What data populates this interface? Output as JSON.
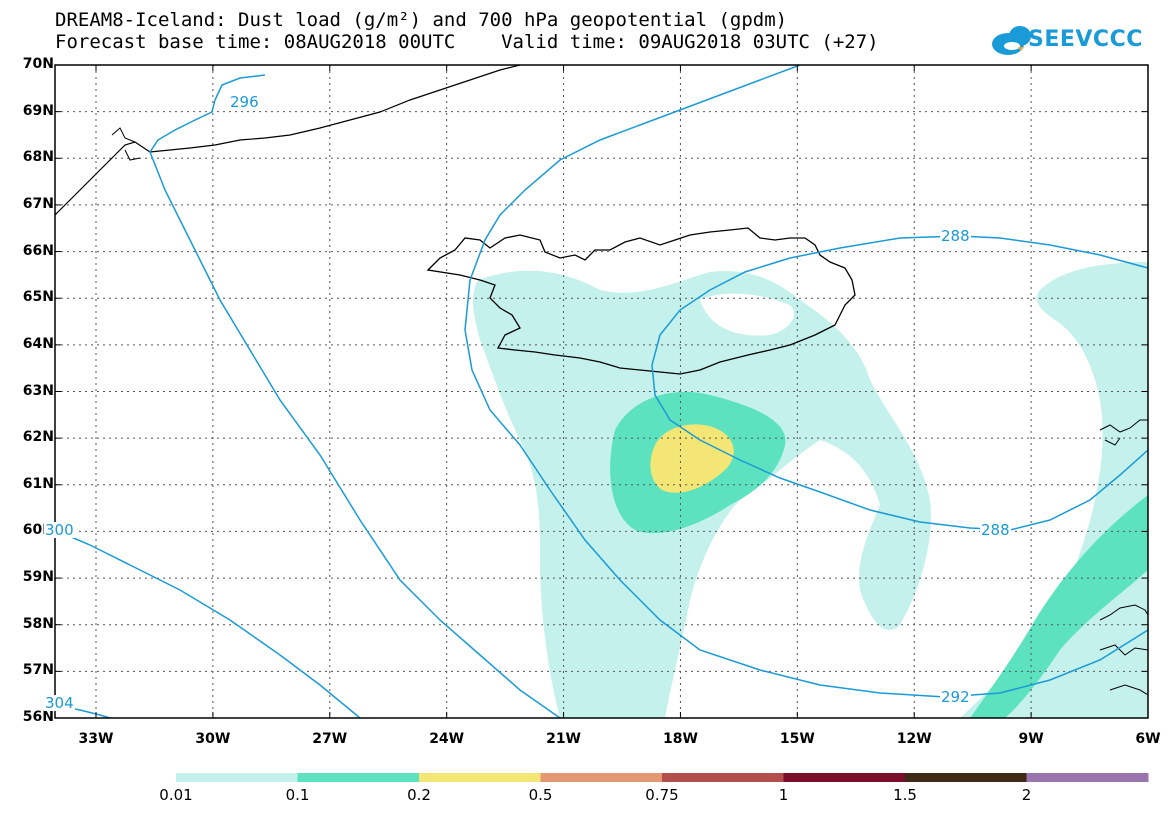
{
  "title": {
    "line1": "DREAM8-Iceland: Dust load (g/m²) and 700 hPa geopotential (gpdm)",
    "line2": "Forecast base time: 08AUG2018 00UTC    Valid time: 09AUG2018 03UTC (+27)"
  },
  "logo": {
    "text": "SEEVCCC",
    "icon": "cloud-icon",
    "color": "#1a9ad6"
  },
  "map": {
    "lat_labels": [
      "70N",
      "69N",
      "68N",
      "67N",
      "66N",
      "65N",
      "64N",
      "63N",
      "62N",
      "61N",
      "60N",
      "59N",
      "58N",
      "57N",
      "56N"
    ],
    "lon_labels": [
      "33W",
      "30W",
      "27W",
      "24W",
      "21W",
      "18W",
      "15W",
      "12W",
      "9W",
      "6W"
    ],
    "contour_color": "#1a9ad6",
    "contour_labels": [
      "296",
      "288",
      "288",
      "292",
      "300",
      "304"
    ]
  },
  "colorbar": {
    "labels": [
      "0.01",
      "0.1",
      "0.2",
      "0.5",
      "0.75",
      "1",
      "1.5",
      "2"
    ],
    "colors": [
      "#c4f1ec",
      "#5de2bf",
      "#f4e675",
      "#e39873",
      "#b24e4c",
      "#7a0c2c",
      "#3d2914",
      "#9974ad"
    ]
  }
}
